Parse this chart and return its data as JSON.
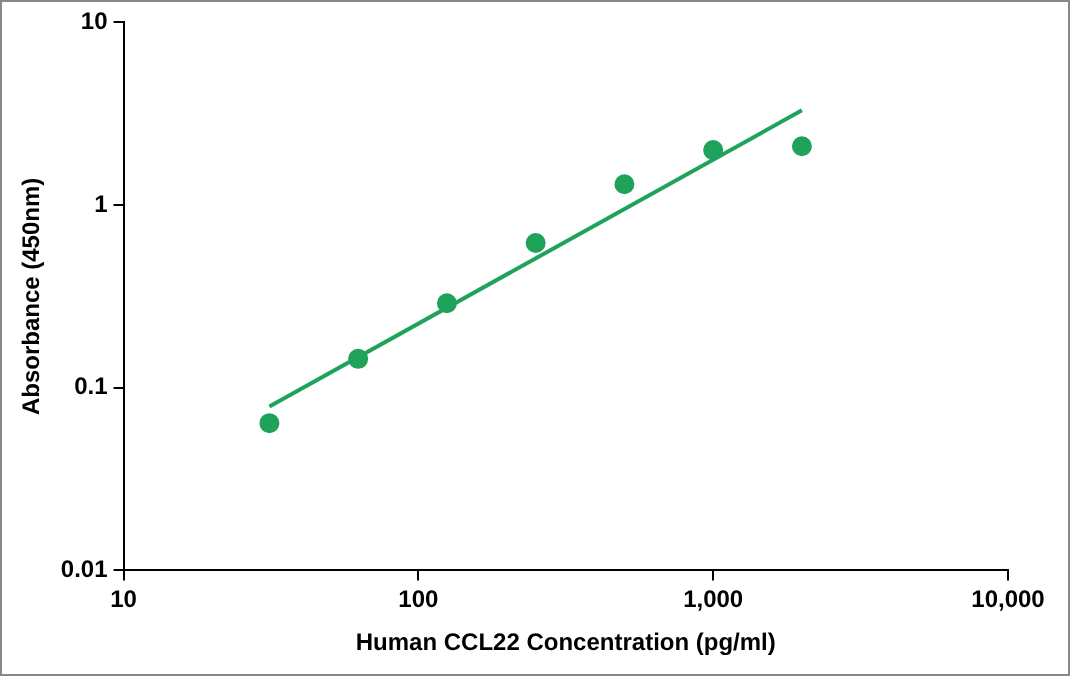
{
  "chart_data": {
    "type": "scatter",
    "xlabel": "Human CCL22 Concentration (pg/ml)",
    "ylabel": "Absorbance (450nm)",
    "log": "xy",
    "xlim": [
      10,
      10000
    ],
    "ylim": [
      0.01,
      10
    ],
    "xticks": [
      10,
      100,
      {
        "value": 1000,
        "label": "1,000"
      },
      {
        "value": 10000,
        "label": "10,000"
      }
    ],
    "yticks": [
      0.01,
      0.1,
      1,
      10
    ],
    "grid": false,
    "legend": false,
    "marker": "circle",
    "series": [
      {
        "type": "scatter",
        "color": "#1fa25a",
        "x": [
          31.25,
          62.5,
          125,
          250,
          500,
          1000,
          2000
        ],
        "values": [
          0.064,
          0.144,
          0.29,
          0.62,
          1.3,
          2.0,
          2.1
        ]
      },
      {
        "type": "line",
        "color": "#1fa25a",
        "x": [
          31.25,
          2000
        ],
        "values": [
          0.079,
          3.3
        ],
        "marker": "none",
        "line_style": "solid"
      }
    ]
  }
}
